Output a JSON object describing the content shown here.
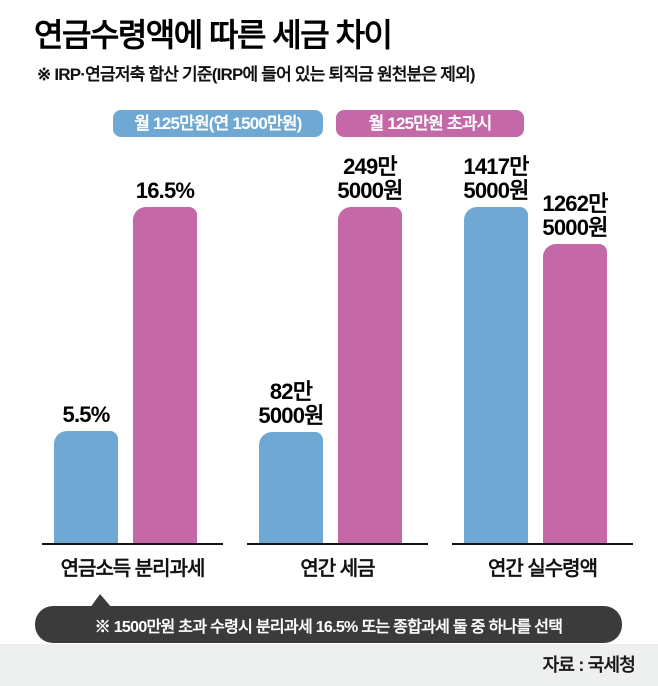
{
  "title": "연금수령액에 따른 세금 차이",
  "subtitle": "※ IRP·연금저축 합산 기준(IRP에 들어 있는 퇴직금 원천분은 제외)",
  "legend": {
    "items": [
      {
        "label": "월 125만원(연 1500만원)",
        "color": "#6FA9D3"
      },
      {
        "label": "월 125만원 초과시",
        "color": "#C468A7"
      }
    ]
  },
  "chart_data": {
    "type": "bar",
    "categories": [
      "연금소득 분리과세",
      "연간 세금",
      "연간 실수령액"
    ],
    "series": [
      {
        "name": "월 125만원(연 1500만원)",
        "color": "#6FA9D3",
        "values": [
          5.5,
          82.5,
          1417.5
        ]
      },
      {
        "name": "월 125만원 초과시",
        "color": "#C468A7",
        "values": [
          16.5,
          249.5,
          1262.5
        ]
      }
    ],
    "units": [
      "%",
      "만원",
      "만원"
    ],
    "legend_position": "top",
    "grid": false,
    "scale_note": "each category group scaled independently to its max bar",
    "groups": [
      {
        "category": "연금소득 분리과세",
        "bars": [
          {
            "series": "월 125만원(연 1500만원)",
            "value": 5.5,
            "label_lines": [
              "5.5%"
            ]
          },
          {
            "series": "월 125만원 초과시",
            "value": 16.5,
            "label_lines": [
              "16.5%"
            ]
          }
        ]
      },
      {
        "category": "연간 세금",
        "bars": [
          {
            "series": "월 125만원(연 1500만원)",
            "value": 82.5,
            "label_lines": [
              "82만",
              "5000원"
            ]
          },
          {
            "series": "월 125만원 초과시",
            "value": 249.5,
            "label_lines": [
              "249만",
              "5000원"
            ]
          }
        ]
      },
      {
        "category": "연간 실수령액",
        "bars": [
          {
            "series": "월 125만원(연 1500만원)",
            "value": 1417.5,
            "label_lines": [
              "1417만",
              "5000원"
            ]
          },
          {
            "series": "월 125만원 초과시",
            "value": 1262.5,
            "label_lines": [
              "1262만",
              "5000원"
            ]
          }
        ]
      }
    ]
  },
  "footnote": "※ 1500만원 초과 수령시 분리과세 16.5% 또는 종합과세 둘 중 하나를 선택",
  "source": "자료 : 국세청",
  "colors": {
    "bar_blue": "#6FA9D3",
    "bar_pink": "#C468A7",
    "bubble_bg": "#3B3B3B",
    "footer_band_bg": "#EEF0EF",
    "axis": "#121212"
  }
}
